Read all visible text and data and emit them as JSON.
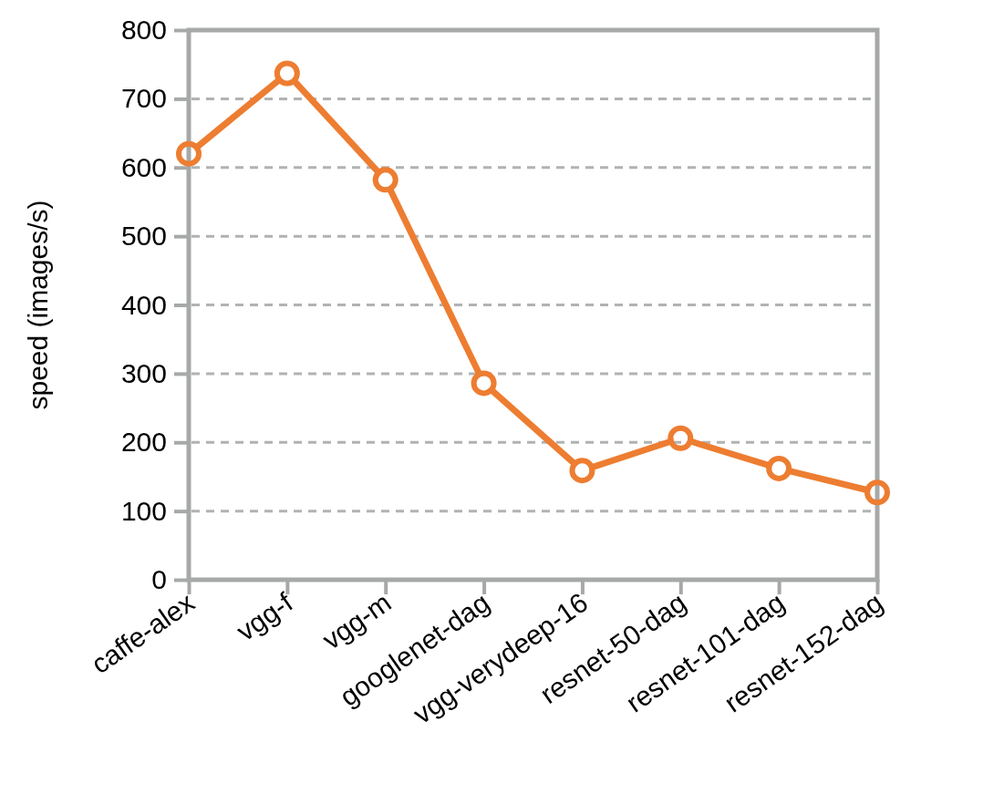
{
  "chart_data": {
    "type": "line",
    "ylabel": "speed (images/s)",
    "categories": [
      "caffe-alex",
      "vgg-f",
      "vgg-m",
      "googlenet-dag",
      "vgg-verydeep-16",
      "resnet-50-dag",
      "resnet-101-dag",
      "resnet-152-dag"
    ],
    "series": [
      {
        "color": "#ed7d31",
        "values": [
          620,
          737,
          582,
          286,
          159,
          206,
          162,
          127
        ]
      }
    ],
    "ylim": [
      0,
      800
    ],
    "yticks": [
      0,
      100,
      200,
      300,
      400,
      500,
      600,
      700,
      800
    ],
    "grid": "y",
    "marker": "circle",
    "line_style": "solid"
  }
}
